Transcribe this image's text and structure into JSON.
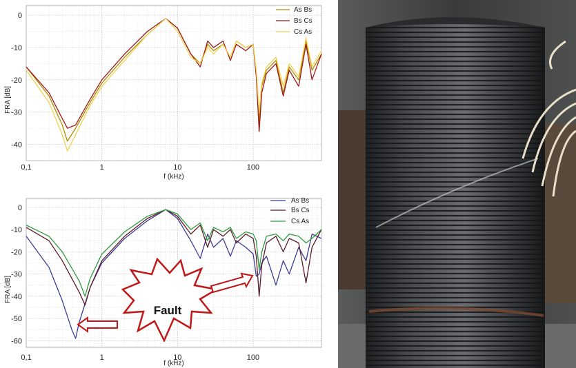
{
  "chart_data": [
    {
      "type": "line",
      "xlabel": "f (kHz)",
      "ylabel": "FRA [dB]",
      "xscale": "log",
      "xlim": [
        0.1,
        800
      ],
      "ylim": [
        -45,
        3
      ],
      "grid": true,
      "legend_position": "top-right",
      "x_tick_labels": [
        "0,1",
        "1",
        "10",
        "100"
      ],
      "y_tick_labels": [
        "0",
        "-10",
        "-20",
        "-30",
        "-40"
      ],
      "colors": [
        "#b08a00",
        "#a01818",
        "#f0d250"
      ],
      "series": [
        {
          "name": "As Bs",
          "x": [
            0.1,
            0.2,
            0.3,
            0.35,
            0.45,
            0.7,
            1,
            2,
            4,
            7,
            10,
            15,
            20,
            25,
            30,
            40,
            50,
            60,
            80,
            100,
            110,
            120,
            130,
            150,
            200,
            250,
            300,
            400,
            500,
            600,
            800
          ],
          "y": [
            -16,
            -25,
            -34,
            -39,
            -35,
            -27,
            -21,
            -13,
            -6,
            -1,
            -4,
            -12,
            -15,
            -9,
            -11,
            -9,
            -13,
            -8,
            -10,
            -9,
            -18,
            -33,
            -22,
            -17,
            -14,
            -24,
            -16,
            -20,
            -8,
            -17,
            -12
          ]
        },
        {
          "name": "Bs Cs",
          "x": [
            0.1,
            0.2,
            0.3,
            0.35,
            0.45,
            0.7,
            1,
            2,
            4,
            7,
            10,
            15,
            20,
            25,
            30,
            40,
            50,
            60,
            80,
            100,
            110,
            120,
            130,
            150,
            200,
            250,
            300,
            400,
            500,
            600,
            800
          ],
          "y": [
            -16,
            -24,
            -32,
            -35,
            -34,
            -26,
            -20,
            -12,
            -5,
            -1,
            -4,
            -12,
            -16,
            -8,
            -10,
            -8,
            -14,
            -9,
            -11,
            -9,
            -19,
            -36,
            -24,
            -18,
            -15,
            -25,
            -17,
            -22,
            -9,
            -20,
            -12
          ]
        },
        {
          "name": "Cs As",
          "x": [
            0.1,
            0.2,
            0.3,
            0.35,
            0.45,
            0.7,
            1,
            2,
            4,
            7,
            10,
            15,
            20,
            25,
            30,
            40,
            50,
            60,
            80,
            100,
            110,
            120,
            130,
            150,
            200,
            250,
            300,
            400,
            500,
            600,
            800
          ],
          "y": [
            -17,
            -27,
            -37,
            -42,
            -37,
            -28,
            -22,
            -14,
            -6,
            -1,
            -5,
            -13,
            -15,
            -10,
            -12,
            -9,
            -13,
            -8,
            -10,
            -9,
            -17,
            -30,
            -21,
            -16,
            -13,
            -22,
            -15,
            -19,
            -7,
            -16,
            -11
          ]
        }
      ]
    },
    {
      "type": "line",
      "xlabel": "f (kHz)",
      "ylabel": "FRA [dB]",
      "xscale": "log",
      "xlim": [
        0.1,
        800
      ],
      "ylim": [
        -63,
        4
      ],
      "grid": true,
      "legend_position": "top-right",
      "x_tick_labels": [
        "0,1",
        "1",
        "10",
        "100"
      ],
      "y_tick_labels": [
        "0",
        "-10",
        "-20",
        "-30",
        "-40",
        "-50",
        "-60"
      ],
      "colors": [
        "#3c3c96",
        "#5a1a2a",
        "#2e9a3a"
      ],
      "series": [
        {
          "name": "As Bs",
          "x": [
            0.1,
            0.2,
            0.3,
            0.4,
            0.45,
            0.5,
            0.7,
            1,
            2,
            4,
            7,
            10,
            15,
            20,
            25,
            30,
            40,
            50,
            60,
            80,
            100,
            110,
            120,
            130,
            150,
            200,
            250,
            300,
            400,
            500,
            600,
            800
          ],
          "y": [
            -13,
            -27,
            -42,
            -55,
            -59,
            -52,
            -36,
            -25,
            -14,
            -6,
            -1,
            -5,
            -15,
            -23,
            -12,
            -18,
            -14,
            -22,
            -15,
            -18,
            -21,
            -31,
            -30,
            -25,
            -22,
            -35,
            -24,
            -30,
            -18,
            -24,
            -12,
            -14
          ]
        },
        {
          "name": "Bs Cs",
          "x": [
            0.1,
            0.2,
            0.3,
            0.5,
            0.6,
            0.7,
            1,
            2,
            4,
            7,
            10,
            15,
            20,
            25,
            30,
            40,
            50,
            60,
            80,
            100,
            110,
            120,
            130,
            150,
            200,
            250,
            300,
            400,
            500,
            600,
            800
          ],
          "y": [
            -9,
            -15,
            -24,
            -38,
            -44,
            -36,
            -24,
            -13,
            -5,
            -1,
            -4,
            -12,
            -8,
            -18,
            -10,
            -13,
            -10,
            -16,
            -12,
            -14,
            -22,
            -40,
            -26,
            -16,
            -13,
            -20,
            -14,
            -16,
            -34,
            -18,
            -10
          ]
        },
        {
          "name": "Cs As",
          "x": [
            0.1,
            0.2,
            0.3,
            0.5,
            0.6,
            0.7,
            1,
            2,
            4,
            7,
            10,
            15,
            20,
            25,
            30,
            40,
            50,
            60,
            80,
            100,
            110,
            120,
            130,
            150,
            200,
            250,
            300,
            400,
            500,
            600,
            800
          ],
          "y": [
            -8,
            -13,
            -20,
            -33,
            -40,
            -32,
            -21,
            -11,
            -4,
            -1,
            -3,
            -10,
            -7,
            -15,
            -9,
            -11,
            -9,
            -14,
            -11,
            -12,
            -15,
            -28,
            -20,
            -13,
            -12,
            -15,
            -12,
            -13,
            -16,
            -14,
            -10
          ]
        }
      ]
    }
  ],
  "annotation": {
    "label": "Fault",
    "fill": "#ffffff",
    "stroke": "#c01818"
  }
}
